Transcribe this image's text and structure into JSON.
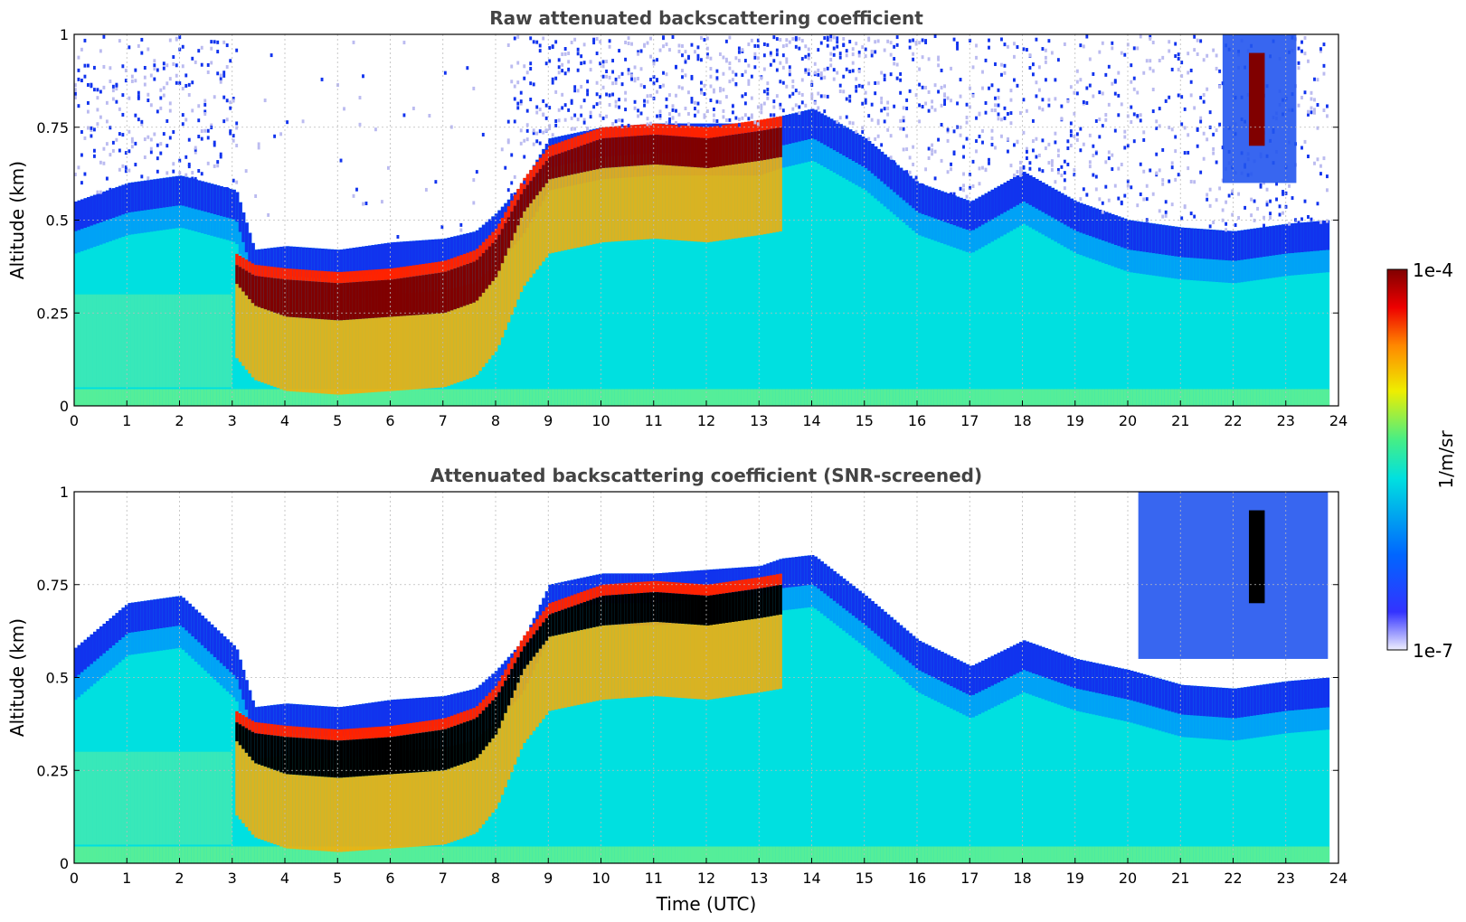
{
  "chart_data": [
    {
      "type": "heatmap",
      "title": "Raw attenuated backscattering coefficient",
      "xlabel": "",
      "ylabel": "Altitude (km)",
      "xlim": [
        0,
        24
      ],
      "ylim": [
        0,
        1
      ],
      "xticks": [
        "0",
        "1",
        "2",
        "3",
        "4",
        "5",
        "6",
        "7",
        "8",
        "9",
        "10",
        "11",
        "12",
        "13",
        "14",
        "15",
        "16",
        "17",
        "18",
        "19",
        "20",
        "21",
        "22",
        "23",
        "24"
      ],
      "yticks": [
        "0",
        "0.25",
        "0.5",
        "0.75",
        "1"
      ],
      "grid": true,
      "data_end_time": 23.8,
      "layers": {
        "time": [
          0,
          1,
          2,
          3.05,
          3.4,
          4,
          5,
          6,
          7,
          7.6,
          8,
          8.5,
          9,
          10,
          11,
          12,
          13,
          13.4,
          14,
          15,
          16,
          17,
          18,
          19,
          20,
          21,
          22,
          23,
          23.8
        ],
        "signal_top_km": [
          0.55,
          0.6,
          0.62,
          0.58,
          0.42,
          0.43,
          0.42,
          0.44,
          0.45,
          0.47,
          0.52,
          0.6,
          0.72,
          0.75,
          0.76,
          0.76,
          0.76,
          0.78,
          0.8,
          0.72,
          0.6,
          0.55,
          0.63,
          0.55,
          0.5,
          0.48,
          0.47,
          0.49,
          0.5
        ],
        "peak_top_km": [
          null,
          null,
          null,
          0.38,
          0.35,
          0.34,
          0.33,
          0.34,
          0.36,
          0.39,
          0.45,
          0.58,
          0.67,
          0.72,
          0.73,
          0.72,
          0.74,
          0.75,
          null,
          null,
          null,
          null,
          null,
          null,
          null,
          null,
          null,
          null,
          null
        ],
        "peak_bottom_km": [
          null,
          null,
          null,
          0.33,
          0.27,
          0.24,
          0.23,
          0.24,
          0.25,
          0.28,
          0.35,
          0.52,
          0.61,
          0.64,
          0.65,
          0.64,
          0.66,
          0.67,
          null,
          null,
          null,
          null,
          null,
          null,
          null,
          null,
          null,
          null,
          null
        ]
      },
      "upper_cloud": {
        "time": [
          21.8,
          23.2
        ],
        "altitude_km": [
          0.6,
          1.0
        ]
      }
    },
    {
      "type": "heatmap",
      "title": "Attenuated backscattering coefficient (SNR-screened)",
      "xlabel": "Time (UTC)",
      "ylabel": "Altitude (km)",
      "xlim": [
        0,
        24
      ],
      "ylim": [
        0,
        1
      ],
      "xticks": [
        "0",
        "1",
        "2",
        "3",
        "4",
        "5",
        "6",
        "7",
        "8",
        "9",
        "10",
        "11",
        "12",
        "13",
        "14",
        "15",
        "16",
        "17",
        "18",
        "19",
        "20",
        "21",
        "22",
        "23",
        "24"
      ],
      "yticks": [
        "0",
        "0.25",
        "0.5",
        "0.75",
        "1"
      ],
      "grid": true,
      "data_end_time": 23.8,
      "saturated_color": "#000000",
      "layers": {
        "time": [
          0,
          1,
          2,
          3.05,
          3.4,
          4,
          5,
          6,
          7,
          7.6,
          8,
          8.5,
          9,
          10,
          11,
          12,
          13,
          13.4,
          14,
          15,
          16,
          17,
          18,
          19,
          20,
          21,
          22,
          23,
          23.8
        ],
        "signal_top_km": [
          0.58,
          0.7,
          0.72,
          0.58,
          0.42,
          0.43,
          0.42,
          0.44,
          0.45,
          0.47,
          0.52,
          0.6,
          0.75,
          0.78,
          0.78,
          0.79,
          0.8,
          0.82,
          0.83,
          0.72,
          0.6,
          0.53,
          0.6,
          0.55,
          0.52,
          0.48,
          0.47,
          0.49,
          0.5
        ],
        "peak_top_km": [
          null,
          null,
          null,
          0.38,
          0.35,
          0.34,
          0.33,
          0.34,
          0.36,
          0.39,
          0.45,
          0.58,
          0.67,
          0.72,
          0.73,
          0.72,
          0.74,
          0.75,
          null,
          null,
          null,
          null,
          null,
          null,
          null,
          null,
          null,
          null,
          null
        ],
        "peak_bottom_km": [
          null,
          null,
          null,
          0.33,
          0.27,
          0.24,
          0.23,
          0.24,
          0.25,
          0.28,
          0.35,
          0.52,
          0.61,
          0.64,
          0.65,
          0.64,
          0.66,
          0.67,
          null,
          null,
          null,
          null,
          null,
          null,
          null,
          null,
          null,
          null,
          null
        ]
      },
      "upper_cloud": {
        "time": [
          20.2,
          23.8
        ],
        "altitude_km": [
          0.55,
          1.0
        ]
      }
    }
  ],
  "colorbar": {
    "label": "1/m/sr",
    "min_label": "1e-7",
    "max_label": "1e-4",
    "scale": "log",
    "colors": [
      "#eeeefe",
      "#0000ff",
      "#00aaff",
      "#00eeee",
      "#44ee88",
      "#eeee00",
      "#ff8800",
      "#ee0000",
      "#800000"
    ]
  },
  "colors": {
    "noise": "#1133ee",
    "sparse_noise": "#bbbbf0",
    "background": "#00e0e0",
    "surface_band": "#55ee99",
    "peak": "#800000",
    "saturated": "#000000"
  }
}
